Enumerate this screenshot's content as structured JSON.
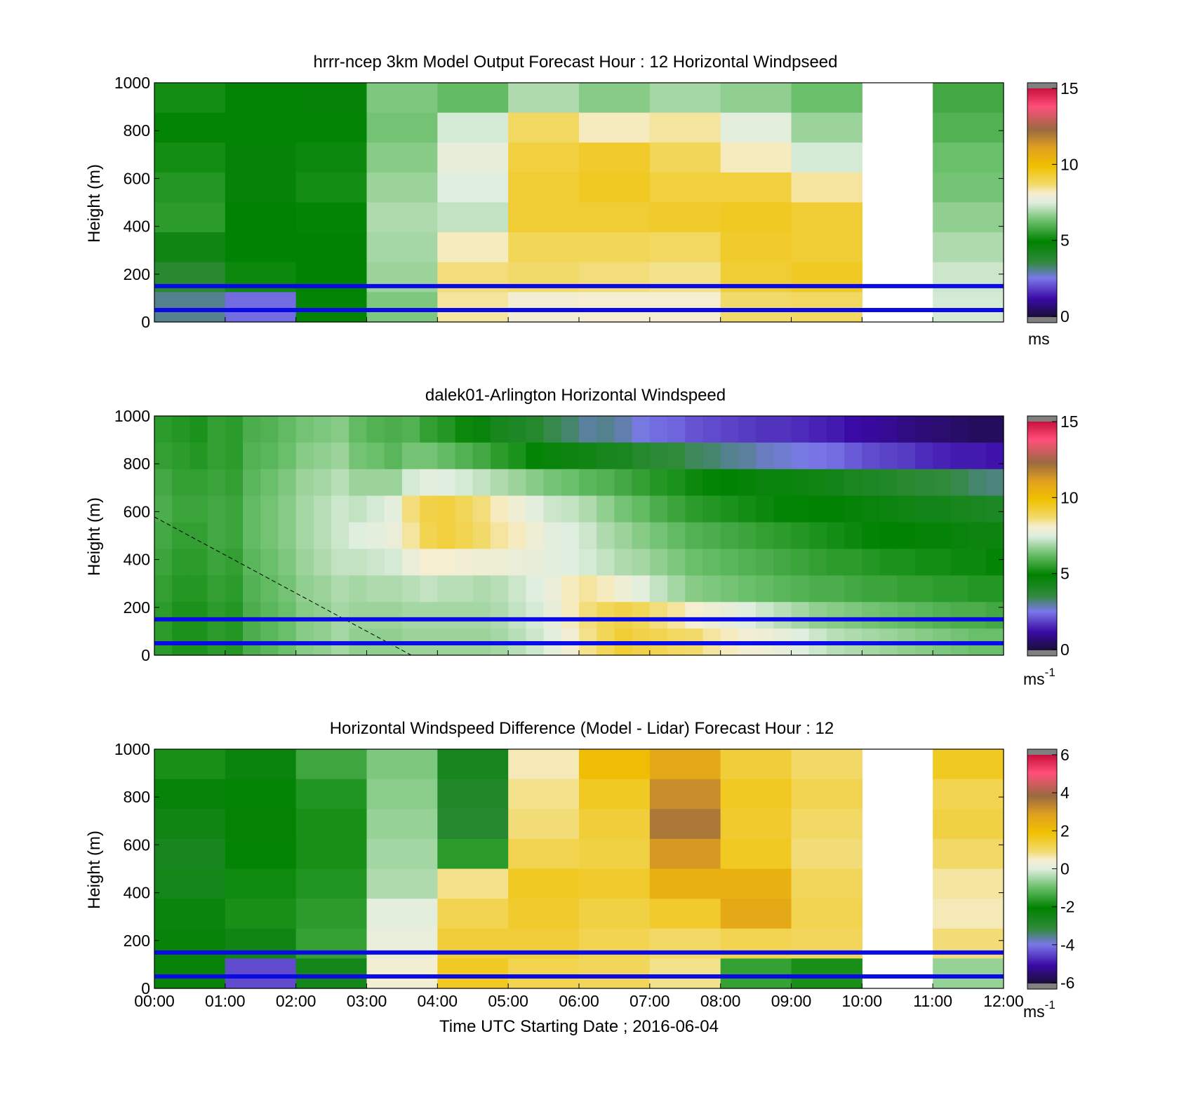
{
  "chart_data": [
    {
      "type": "heatmap",
      "title": "hrrr-ncep 3km Model Output   Forecast Hour : 12 Horizontal Windpseed",
      "ylabel": "Height (m)",
      "ylim": [
        0,
        1000
      ],
      "yticks": [
        "0",
        "200",
        "400",
        "600",
        "800",
        "1000"
      ],
      "xlim_hours": [
        0,
        12
      ],
      "time_columns": [
        "00:00",
        "01:00",
        "02:00",
        "03:00",
        "04:00",
        "05:00",
        "06:00",
        "07:00",
        "08:00",
        "09:00",
        "10:00",
        "11:00"
      ],
      "values_ms": [
        [
          5.2,
          5.0,
          4.8,
          6.5,
          6.2,
          7.0,
          6.6,
          6.9,
          6.7,
          6.3,
          null,
          5.8
        ],
        [
          5.0,
          5.0,
          5.0,
          6.4,
          7.4,
          8.8,
          8.2,
          8.4,
          7.6,
          6.8,
          null,
          6.0
        ],
        [
          5.2,
          4.8,
          5.1,
          6.6,
          7.7,
          9.2,
          9.4,
          8.9,
          8.2,
          7.4,
          null,
          6.3
        ],
        [
          5.4,
          4.8,
          5.2,
          6.8,
          7.5,
          9.3,
          9.5,
          9.2,
          9.2,
          8.4,
          null,
          6.4
        ],
        [
          5.5,
          4.9,
          5.0,
          7.0,
          7.2,
          9.3,
          9.3,
          9.4,
          9.5,
          9.3,
          null,
          6.7
        ],
        [
          4.5,
          4.9,
          4.9,
          6.9,
          8.2,
          8.9,
          8.9,
          8.8,
          9.4,
          9.3,
          null,
          7.0
        ],
        [
          3.8,
          5.1,
          4.9,
          6.8,
          8.6,
          8.7,
          8.6,
          8.5,
          9.3,
          9.5,
          null,
          7.3
        ],
        [
          3.1,
          2.4,
          5.0,
          6.5,
          8.4,
          8.0,
          8.1,
          8.1,
          8.7,
          8.8,
          null,
          7.4
        ]
      ],
      "reference_lines_m": [
        50,
        150
      ],
      "colorbar": {
        "range": [
          0,
          15
        ],
        "ticks": [
          "0",
          "5",
          "10",
          "15"
        ],
        "unit": "ms"
      }
    },
    {
      "type": "heatmap",
      "title": "dalek01-Arlington  Horizontal Windspeed",
      "ylabel": "Height (m)",
      "ylim": [
        0,
        1000
      ],
      "yticks": [
        "0",
        "200",
        "400",
        "600",
        "800",
        "1000"
      ],
      "xlim_hours": [
        0,
        12
      ],
      "time_step_min": 15,
      "values_ms_by_height": [
        [
          5.5,
          5.4,
          5.3,
          5.6,
          5.5,
          5.9,
          6.0,
          6.2,
          6.4,
          6.5,
          6.6,
          6.2,
          6.0,
          5.9,
          6.0,
          5.6,
          5.4,
          5.1,
          4.7,
          4.3,
          4.1,
          3.9,
          3.5,
          3.3,
          3.0,
          3.1,
          2.9,
          2.6,
          2.4,
          2.3,
          2.1,
          2.0,
          1.9,
          1.8,
          1.7,
          1.7,
          1.6,
          1.5,
          1.4,
          1.2,
          1.1,
          1.0,
          0.8,
          0.7,
          0.6,
          0.5,
          0.4,
          0.4
        ],
        [
          5.6,
          5.5,
          5.4,
          5.6,
          5.5,
          6.0,
          6.1,
          6.3,
          6.6,
          6.7,
          6.8,
          6.4,
          6.3,
          6.1,
          6.4,
          6.4,
          6.2,
          6.0,
          5.8,
          5.5,
          5.3,
          5.0,
          4.7,
          4.6,
          4.5,
          4.3,
          4.2,
          3.9,
          3.7,
          3.6,
          3.4,
          3.3,
          3.1,
          3.0,
          2.8,
          2.7,
          2.6,
          2.5,
          2.4,
          2.2,
          2.0,
          1.9,
          1.8,
          1.6,
          1.5,
          1.4,
          1.4,
          1.3
        ],
        [
          5.8,
          5.6,
          5.6,
          5.7,
          5.6,
          6.1,
          6.3,
          6.5,
          6.8,
          6.9,
          7.1,
          6.8,
          6.8,
          6.8,
          7.4,
          7.6,
          7.5,
          7.4,
          7.2,
          7.0,
          6.8,
          6.6,
          6.4,
          6.3,
          6.1,
          6.0,
          5.8,
          5.6,
          5.4,
          5.3,
          5.1,
          5.0,
          4.9,
          4.8,
          4.7,
          4.7,
          4.6,
          4.5,
          4.4,
          4.2,
          4.1,
          4.0,
          3.8,
          3.7,
          3.6,
          3.5,
          3.3,
          3.2
        ],
        [
          5.9,
          5.7,
          5.7,
          5.8,
          5.7,
          6.2,
          6.4,
          6.6,
          6.9,
          7.1,
          7.3,
          7.2,
          7.4,
          7.6,
          8.6,
          9.1,
          9.2,
          8.9,
          8.6,
          8.2,
          7.9,
          7.6,
          7.3,
          7.2,
          7.0,
          6.7,
          6.4,
          6.2,
          5.9,
          5.7,
          5.5,
          5.4,
          5.3,
          5.2,
          5.1,
          5.0,
          5.0,
          4.9,
          4.9,
          4.8,
          4.7,
          4.6,
          4.5,
          4.4,
          4.4,
          4.3,
          4.2,
          4.1
        ],
        [
          5.8,
          5.6,
          5.6,
          5.8,
          5.7,
          6.2,
          6.4,
          6.6,
          6.9,
          7.1,
          7.3,
          7.5,
          7.6,
          7.8,
          8.4,
          9.0,
          9.2,
          9.0,
          8.7,
          8.4,
          8.2,
          7.9,
          7.6,
          7.5,
          7.3,
          7.0,
          6.8,
          6.6,
          6.4,
          6.2,
          6.0,
          5.9,
          5.8,
          5.7,
          5.6,
          5.5,
          5.4,
          5.3,
          5.2,
          5.1,
          5.0,
          4.9,
          4.9,
          4.8,
          4.8,
          4.7,
          4.6,
          4.6
        ],
        [
          5.7,
          5.5,
          5.5,
          5.7,
          5.6,
          6.1,
          6.3,
          6.5,
          6.8,
          7.0,
          7.2,
          7.2,
          7.3,
          7.4,
          7.8,
          8.1,
          8.1,
          8.0,
          7.9,
          7.9,
          7.8,
          7.7,
          7.6,
          7.5,
          7.4,
          7.2,
          7.0,
          6.9,
          6.7,
          6.5,
          6.3,
          6.2,
          6.1,
          6.0,
          5.9,
          5.8,
          5.7,
          5.6,
          5.5,
          5.5,
          5.4,
          5.3,
          5.3,
          5.2,
          5.2,
          5.1,
          5.1,
          5.0
        ],
        [
          5.6,
          5.4,
          5.4,
          5.6,
          5.5,
          6.0,
          6.2,
          6.4,
          6.7,
          6.8,
          7.0,
          6.9,
          7.0,
          7.0,
          7.1,
          7.2,
          7.1,
          7.1,
          7.0,
          7.1,
          7.3,
          7.5,
          7.8,
          8.2,
          8.4,
          8.2,
          7.9,
          7.6,
          7.2,
          6.9,
          6.6,
          6.5,
          6.4,
          6.3,
          6.2,
          6.1,
          6.0,
          5.9,
          5.9,
          5.8,
          5.7,
          5.7,
          5.6,
          5.6,
          5.5,
          5.5,
          5.4,
          5.4
        ],
        [
          5.5,
          5.3,
          5.3,
          5.5,
          5.4,
          5.9,
          6.1,
          6.3,
          6.6,
          6.7,
          6.9,
          6.8,
          6.8,
          6.8,
          6.9,
          6.9,
          6.9,
          6.9,
          6.9,
          7.0,
          7.2,
          7.4,
          7.7,
          8.2,
          8.6,
          8.9,
          9.1,
          8.9,
          8.6,
          8.4,
          8.1,
          7.9,
          7.7,
          7.5,
          7.3,
          7.1,
          6.9,
          6.7,
          6.6,
          6.5,
          6.4,
          6.3,
          6.2,
          6.1,
          6.0,
          5.9,
          5.9,
          5.8
        ],
        [
          5.5,
          5.3,
          5.3,
          5.5,
          5.4,
          5.9,
          6.1,
          6.3,
          6.6,
          6.7,
          6.9,
          6.7,
          6.7,
          6.7,
          6.8,
          6.8,
          6.8,
          6.8,
          6.8,
          6.9,
          7.1,
          7.3,
          7.6,
          8.0,
          8.5,
          8.9,
          9.3,
          9.1,
          9.0,
          8.8,
          8.7,
          8.4,
          8.2,
          8.0,
          7.9,
          7.7,
          7.5,
          7.3,
          7.1,
          7.0,
          6.9,
          6.8,
          6.7,
          6.6,
          6.5,
          6.4,
          6.3,
          6.3
        ]
      ],
      "reference_lines_m": [
        50,
        150
      ],
      "colorbar": {
        "range": [
          0,
          15
        ],
        "ticks": [
          "0",
          "5",
          "10",
          "15"
        ],
        "unit": "ms",
        "unit_exp": "-1"
      }
    },
    {
      "type": "heatmap",
      "title": "Horizontal Windspeed Difference (Model - Lidar) Forecast Hour : 12",
      "ylabel": "Height (m)",
      "xlabel": "Time UTC  Starting Date ; 2016-06-04",
      "ylim": [
        0,
        1000
      ],
      "yticks": [
        "0",
        "200",
        "400",
        "600",
        "800",
        "1000"
      ],
      "xlim_hours": [
        0,
        12
      ],
      "xticks": [
        "00:00",
        "01:00",
        "02:00",
        "03:00",
        "04:00",
        "05:00",
        "06:00",
        "07:00",
        "08:00",
        "09:00",
        "10:00",
        "11:00",
        "12:00"
      ],
      "time_columns": [
        "00:00",
        "01:00",
        "02:00",
        "03:00",
        "04:00",
        "05:00",
        "06:00",
        "07:00",
        "08:00",
        "09:00",
        "10:00",
        "11:00"
      ],
      "values_ms": [
        [
          -1.8,
          -2.3,
          -1.4,
          -0.8,
          -2.6,
          0.6,
          2.0,
          2.6,
          1.4,
          1.0,
          null,
          1.6
        ],
        [
          -2.2,
          -2.0,
          -1.7,
          -0.7,
          -2.8,
          0.8,
          1.6,
          3.2,
          1.6,
          1.2,
          null,
          1.2
        ],
        [
          -2.4,
          -2.1,
          -1.8,
          -0.6,
          -2.9,
          0.9,
          1.4,
          3.6,
          1.5,
          1.0,
          null,
          1.3
        ],
        [
          -2.6,
          -2.0,
          -1.8,
          -0.5,
          -1.6,
          1.2,
          1.3,
          3.0,
          1.6,
          0.9,
          null,
          1.0
        ],
        [
          -2.5,
          -1.9,
          -1.7,
          -0.4,
          0.8,
          1.6,
          1.5,
          2.4,
          2.4,
          1.1,
          null,
          0.7
        ],
        [
          -2.3,
          -1.8,
          -1.6,
          0.1,
          1.2,
          1.5,
          1.3,
          1.5,
          2.6,
          1.2,
          null,
          0.6
        ],
        [
          -2.2,
          -2.4,
          -1.5,
          0.2,
          1.4,
          1.4,
          1.2,
          1.0,
          1.2,
          1.1,
          null,
          0.9
        ],
        [
          -2.2,
          -4.4,
          -2.5,
          0.4,
          1.6,
          1.2,
          1.1,
          0.8,
          -1.5,
          -1.8,
          null,
          -0.6
        ]
      ],
      "reference_lines_m": [
        50,
        150
      ],
      "colorbar": {
        "range": [
          -6,
          6
        ],
        "ticks": [
          "-6",
          "-4",
          "-2",
          "0",
          "2",
          "4",
          "6"
        ],
        "unit": "ms",
        "unit_exp": "-1"
      }
    }
  ]
}
